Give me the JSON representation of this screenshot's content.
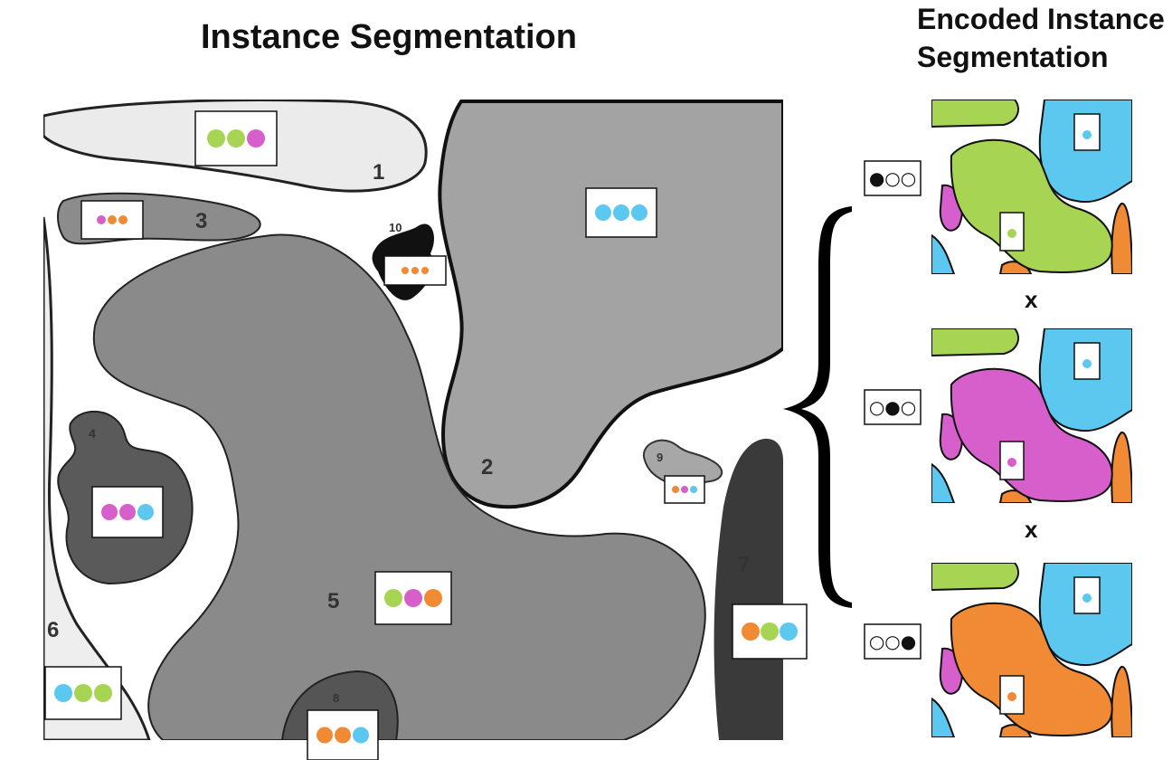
{
  "titles": {
    "main": "Instance Segmentation",
    "encoded_line1": "Encoded Instance",
    "encoded_line2": "Segmentation"
  },
  "colors": {
    "green": "#a8d454",
    "magenta": "#d65fcc",
    "orange": "#f08a35",
    "cyan": "#5cc8ef"
  },
  "regions": [
    {
      "id": "1",
      "dots": [
        "green",
        "green",
        "magenta"
      ]
    },
    {
      "id": "2",
      "dots": [
        "cyan",
        "cyan",
        "cyan"
      ]
    },
    {
      "id": "3",
      "dots": [
        "magenta",
        "orange",
        "orange"
      ]
    },
    {
      "id": "4",
      "dots": [
        "magenta",
        "magenta",
        "cyan"
      ]
    },
    {
      "id": "5",
      "dots": [
        "green",
        "magenta",
        "orange"
      ]
    },
    {
      "id": "6",
      "dots": [
        "cyan",
        "green",
        "green"
      ]
    },
    {
      "id": "7",
      "dots": [
        "orange",
        "green",
        "cyan"
      ]
    },
    {
      "id": "8",
      "dots": [
        "orange",
        "orange",
        "cyan"
      ]
    },
    {
      "id": "9",
      "dots": [
        "orange",
        "magenta",
        "cyan"
      ]
    },
    {
      "id": "10",
      "dots": [
        "orange",
        "orange",
        "orange"
      ]
    }
  ],
  "channels": [
    {
      "code": "●○○",
      "channel_color": "green"
    },
    {
      "code": "○●○",
      "channel_color": "magenta"
    },
    {
      "code": "○○●",
      "channel_color": "orange"
    }
  ],
  "operator": "x"
}
